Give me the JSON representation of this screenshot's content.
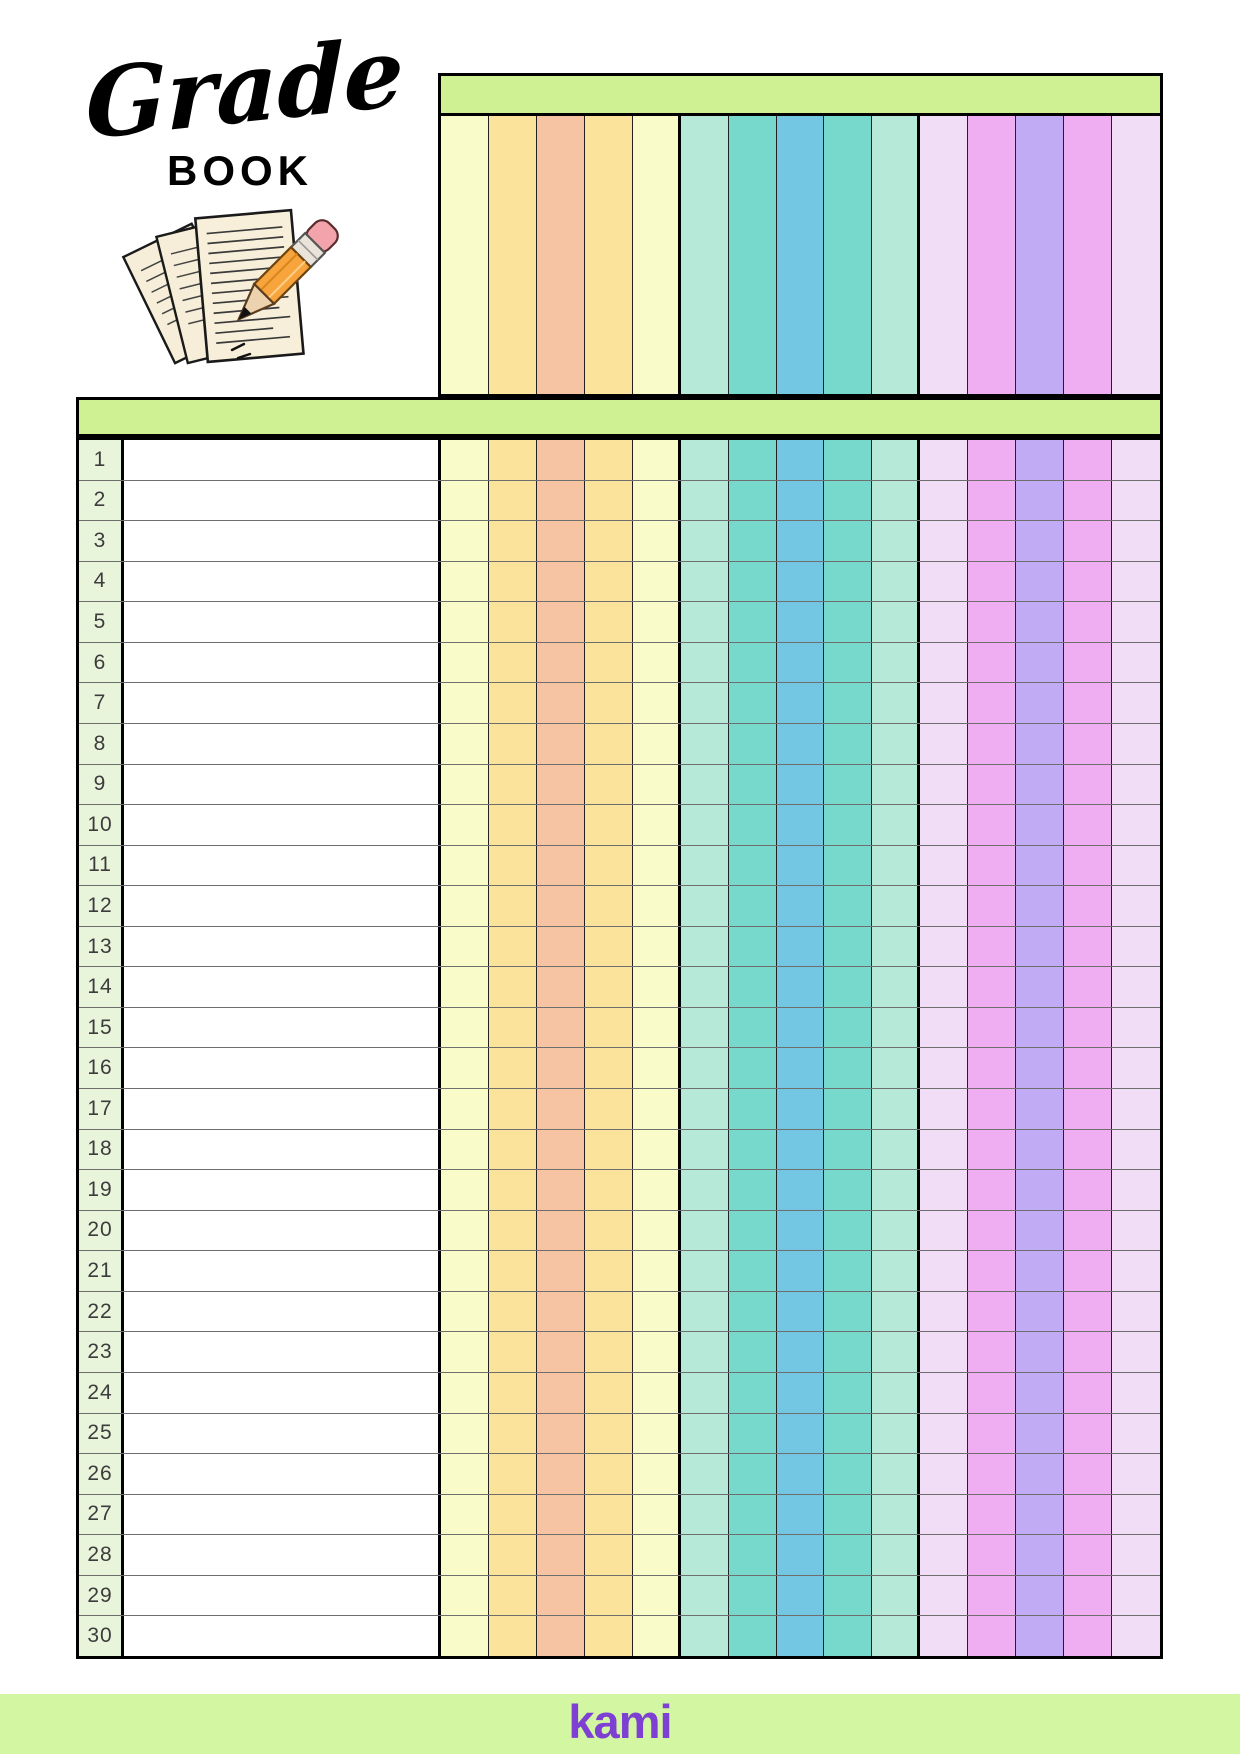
{
  "logo": {
    "title": "Grade",
    "subtitle": "BOOK",
    "illustration": "papers-and-pencil-icon"
  },
  "header": {
    "bar_color": "#cff194",
    "assignment_column_count": 15,
    "column_colors": [
      "#f9fbc9",
      "#fbe39b",
      "#f7c4a3",
      "#fbe39b",
      "#f9fbc9",
      "#b7e9d9",
      "#76d9cc",
      "#73c7e3",
      "#76d9cc",
      "#b7e9d9",
      "#f1def6",
      "#efaef2",
      "#c2abf5",
      "#efaef2",
      "#f1def6"
    ],
    "group_ends": [
      4,
      9
    ]
  },
  "table": {
    "row_numbers": [
      "1",
      "2",
      "3",
      "4",
      "5",
      "6",
      "7",
      "8",
      "9",
      "10",
      "11",
      "12",
      "13",
      "14",
      "15",
      "16",
      "17",
      "18",
      "19",
      "20",
      "21",
      "22",
      "23",
      "24",
      "25",
      "26",
      "27",
      "28",
      "29",
      "30"
    ],
    "row_number_bg": "#e9f5db",
    "bar_color": "#cff194"
  },
  "footer": {
    "brand": "kami",
    "bar_color": "#d3f6a2",
    "brand_color": "#7d40d2"
  }
}
